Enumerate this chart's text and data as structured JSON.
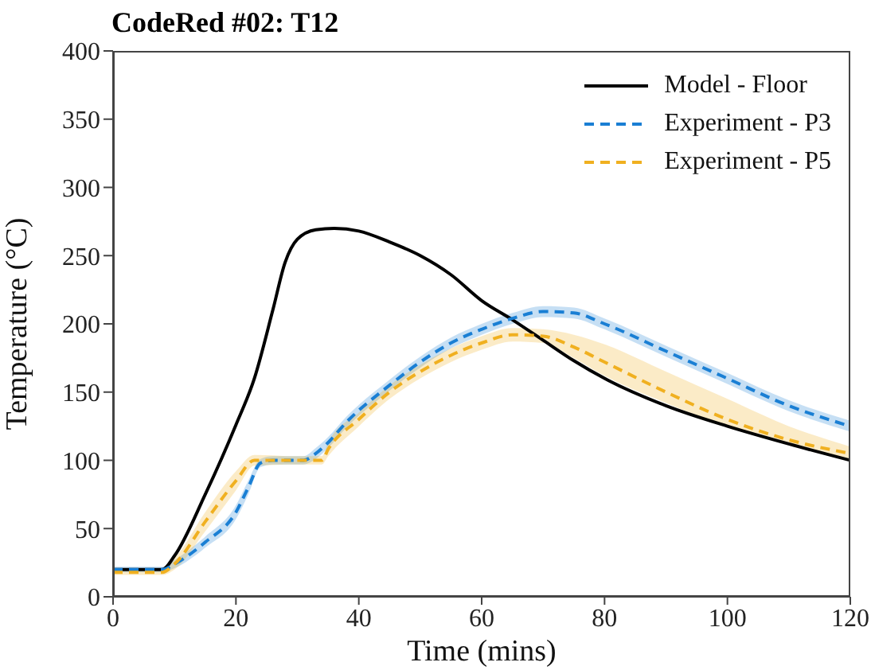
{
  "chart_data": {
    "type": "line",
    "title": "CodeRed #02: T12",
    "xlabel": "Time (mins)",
    "ylabel": "Temperature (°C)",
    "xlim": [
      0,
      120
    ],
    "xticks": [
      0,
      20,
      40,
      60,
      80,
      100,
      120
    ],
    "ylim": [
      0,
      400
    ],
    "yticks": [
      0,
      50,
      100,
      150,
      200,
      250,
      300,
      350,
      400
    ],
    "legend": "top right",
    "marker": "none",
    "series": [
      {
        "name": "Model - Floor",
        "color": "#000000",
        "line_style": "solid",
        "x": [
          0,
          8,
          10,
          15,
          20,
          23,
          26,
          28,
          30,
          33,
          36,
          40,
          45,
          50,
          55,
          60,
          65,
          70,
          75,
          80,
          90,
          100,
          110,
          120
        ],
        "values": [
          20,
          20,
          30,
          75,
          126,
          160,
          210,
          245,
          262,
          269,
          270,
          268,
          260,
          250,
          236,
          217,
          203,
          188,
          173,
          160,
          140,
          125,
          112,
          100
        ]
      },
      {
        "name": "Experiment - P3",
        "color": "#1a7fd4",
        "line_style": "dashed",
        "x": [
          0,
          8,
          10,
          15,
          20,
          22,
          24,
          26,
          31,
          33,
          35,
          38,
          45,
          50,
          55,
          60,
          65,
          70,
          75,
          80,
          90,
          100,
          110,
          120
        ],
        "values": [
          20,
          20,
          24,
          40,
          62,
          80,
          98,
          100,
          100,
          105,
          113,
          128,
          155,
          172,
          186,
          196,
          204,
          209,
          208,
          200,
          180,
          160,
          140,
          125
        ],
        "lower": [
          18,
          18,
          21,
          36,
          57,
          75,
          95,
          97,
          97,
          101,
          109,
          124,
          151,
          168,
          182,
          192,
          200,
          205,
          204,
          196,
          176,
          156,
          136,
          121
        ],
        "upper": [
          22,
          22,
          27,
          44,
          67,
          85,
          101,
          103,
          103,
          109,
          117,
          132,
          159,
          176,
          190,
          200,
          208,
          213,
          212,
          204,
          184,
          164,
          144,
          129
        ]
      },
      {
        "name": "Experiment - P5",
        "color": "#f0b020",
        "line_style": "dashed",
        "x": [
          0,
          8,
          10,
          15,
          20,
          23,
          30,
          34,
          35,
          40,
          45,
          50,
          55,
          60,
          65,
          70,
          75,
          80,
          90,
          100,
          110,
          120
        ],
        "values": [
          18,
          18,
          24,
          55,
          85,
          100,
          100,
          100,
          108,
          130,
          150,
          165,
          177,
          186,
          192,
          191,
          183,
          172,
          150,
          130,
          115,
          105
        ],
        "lower": [
          16,
          16,
          20,
          48,
          78,
          96,
          97,
          97,
          103,
          125,
          145,
          160,
          172,
          181,
          187,
          186,
          175,
          162,
          142,
          125,
          112,
          100
        ],
        "upper": [
          20,
          20,
          28,
          62,
          92,
          104,
          103,
          103,
          113,
          135,
          155,
          170,
          182,
          191,
          197,
          196,
          192,
          185,
          165,
          145,
          125,
          110
        ]
      }
    ]
  }
}
